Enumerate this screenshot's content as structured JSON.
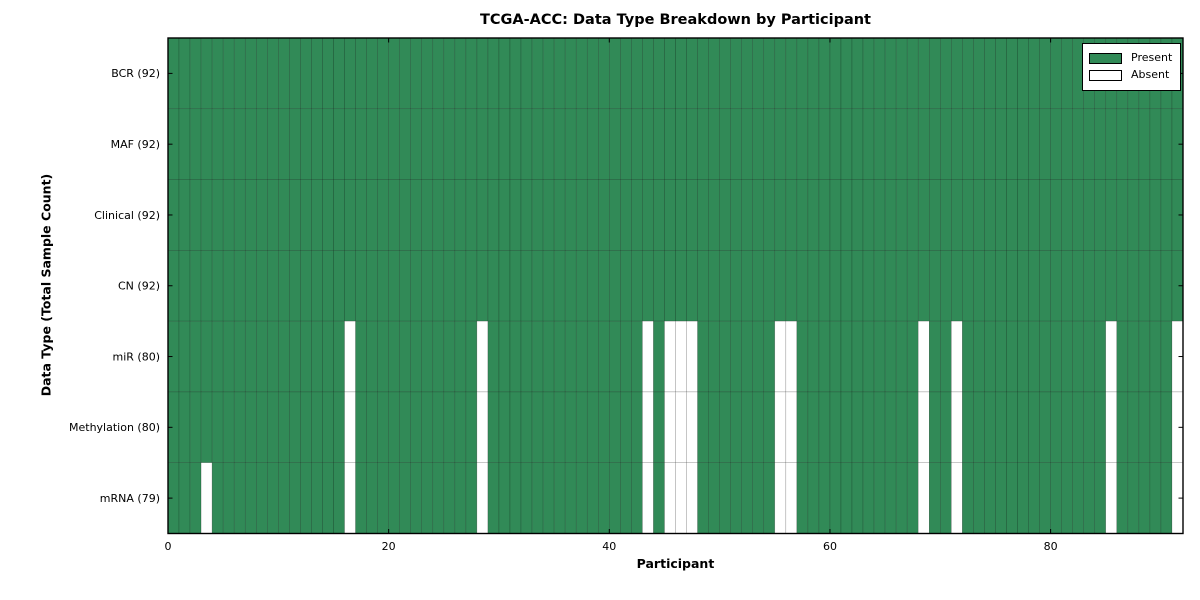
{
  "chart_data": {
    "type": "heatmap",
    "title": "TCGA-ACC: Data Type Breakdown by Participant",
    "xlabel": "Participant",
    "ylabel": "Data Type (Total Sample Count)",
    "n_participants": 92,
    "x_range": [
      0,
      92
    ],
    "x_ticks": [
      0,
      20,
      40,
      60,
      80
    ],
    "grid": false,
    "legend_position": "upper right",
    "legend": [
      {
        "label": "Present",
        "color": "#318a57"
      },
      {
        "label": "Absent",
        "color": "#ffffff"
      }
    ],
    "categories": [
      "BCR (92)",
      "MAF (92)",
      "Clinical (92)",
      "CN (92)",
      "miR (80)",
      "Methylation (80)",
      "mRNA (79)"
    ],
    "cell_values": {
      "present": 1,
      "absent": 0
    },
    "rows": [
      {
        "label": "BCR (92)",
        "present_count": 92,
        "absent_participants": []
      },
      {
        "label": "MAF (92)",
        "present_count": 92,
        "absent_participants": []
      },
      {
        "label": "Clinical (92)",
        "present_count": 92,
        "absent_participants": []
      },
      {
        "label": "CN (92)",
        "present_count": 92,
        "absent_participants": []
      },
      {
        "label": "miR (80)",
        "present_count": 80,
        "absent_participants": [
          16,
          28,
          43,
          45,
          46,
          47,
          55,
          56,
          68,
          71,
          85,
          91
        ]
      },
      {
        "label": "Methylation (80)",
        "present_count": 80,
        "absent_participants": [
          16,
          28,
          43,
          45,
          46,
          47,
          55,
          56,
          68,
          71,
          85,
          91
        ]
      },
      {
        "label": "mRNA (79)",
        "present_count": 79,
        "absent_participants": [
          3,
          16,
          28,
          43,
          45,
          46,
          47,
          55,
          56,
          68,
          71,
          85,
          91
        ]
      }
    ],
    "colors": {
      "present": "#318a57",
      "absent": "#ffffff",
      "cell_edge": "#000000",
      "cell_edge_opacity": 0.32,
      "axis": "#000000"
    }
  }
}
